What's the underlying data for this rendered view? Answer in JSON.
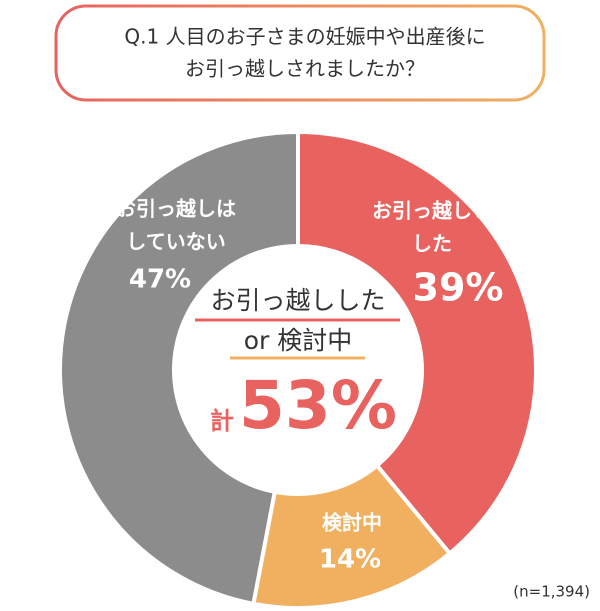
{
  "chart_data": {
    "type": "donut",
    "title": [
      "Q.1 人目のお子さまの妊娠中や出産後に",
      "お引っ越しされましたか？"
    ],
    "categories": [
      [
        "お引っ越しし",
        "した"
      ],
      [
        "検討中"
      ],
      [
        "お引っ越しは",
        "していない"
      ]
    ],
    "values": [
      39,
      14,
      47
    ],
    "value_labels": [
      "39%",
      "14%",
      "47%"
    ],
    "colors": [
      "#e8625f",
      "#f0b060",
      "#8c8c8c"
    ],
    "center": {
      "lines": [
        "お引っ越しした",
        "or 検討中"
      ],
      "prefix": "計",
      "total": 53,
      "total_label": "53%"
    },
    "note": "(n=1,394)"
  }
}
